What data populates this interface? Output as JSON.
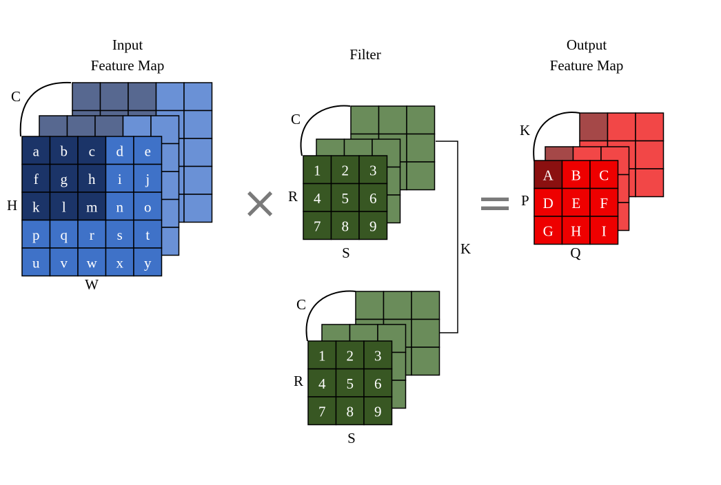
{
  "input": {
    "title": [
      "Input",
      "Feature Map"
    ],
    "channel_label": "C",
    "height_label": "H",
    "width_label": "W",
    "cells": [
      [
        "a",
        "b",
        "c",
        "d",
        "e"
      ],
      [
        "f",
        "g",
        "h",
        "i",
        "j"
      ],
      [
        "k",
        "l",
        "m",
        "n",
        "o"
      ],
      [
        "p",
        "q",
        "r",
        "s",
        "t"
      ],
      [
        "u",
        "v",
        "w",
        "x",
        "y"
      ]
    ],
    "colors": {
      "highlight": "#1b3468",
      "base": "#3f72c8",
      "back_highlight": "#576890",
      "back_base": "#6a91d6"
    }
  },
  "filter": {
    "title": "Filter",
    "channel_label": "C",
    "rows_label": "R",
    "cols_label": "S",
    "count_label": "K",
    "cells": [
      [
        "1",
        "2",
        "3"
      ],
      [
        "4",
        "5",
        "6"
      ],
      [
        "7",
        "8",
        "9"
      ]
    ],
    "colors": {
      "front": "#385723",
      "back": "#6a8c5a"
    }
  },
  "output": {
    "title": [
      "Output",
      "Feature Map"
    ],
    "channel_label": "K",
    "rows_label": "P",
    "cols_label": "Q",
    "cells": [
      [
        "A",
        "B",
        "C"
      ],
      [
        "D",
        "E",
        "F"
      ],
      [
        "G",
        "H",
        "I"
      ]
    ],
    "colors": {
      "highlight": "#8b1010",
      "base": "#ee0000",
      "back_highlight": "#a54848",
      "back_base": "#f24747"
    }
  },
  "operators": {
    "multiply": "×",
    "equals": "="
  },
  "label_colors": {
    "channel": "#8b1c1c",
    "count": "#2f4f8a"
  }
}
